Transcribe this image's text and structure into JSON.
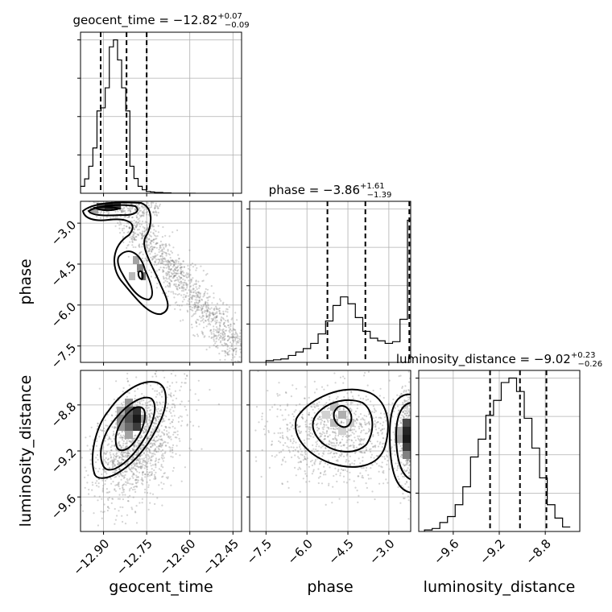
{
  "chart_data": {
    "type": "corner",
    "parameters": [
      {
        "name": "geocent_time",
        "title_prefix": "geocent_time = ",
        "median": "−12.82",
        "upper": "+0.07",
        "lower": "−0.09",
        "range": [
          -12.98,
          -12.42
        ],
        "ticks": [
          -12.9,
          -12.75,
          -12.6,
          -12.45
        ],
        "tick_labels": [
          "−12.90",
          "−12.75",
          "−12.60",
          "−12.45"
        ],
        "quantiles": [
          -12.91,
          -12.82,
          -12.75
        ],
        "hist": {
          "edges_start": -12.98,
          "bin_width": 0.0143,
          "counts": [
            0.16,
            0.33,
            0.62,
            1.04,
            1.89,
            1.96,
            2.42,
            3.36,
            3.52,
            3.06,
            2.42,
            1.89,
            0.62,
            0.34,
            0.16,
            0.08,
            0.04,
            0.03,
            0.02,
            0.02,
            0.01,
            0.01,
            0,
            0,
            0,
            0,
            0,
            0
          ]
        }
      },
      {
        "name": "phase",
        "title_prefix": "phase = ",
        "median": "−3.86",
        "upper": "+1.61",
        "lower": "−1.39",
        "range": [
          -8.1,
          -2.2
        ],
        "ticks": [
          -7.5,
          -6.0,
          -4.5,
          -3.0
        ],
        "tick_labels": [
          "−7.5",
          "−6.0",
          "−4.5",
          "−3.0"
        ],
        "quantiles": [
          -5.25,
          -3.86,
          -2.25
        ],
        "hist": {
          "edges_start": -7.5,
          "bin_width": 0.2727,
          "counts": [
            0.02,
            0.03,
            0.04,
            0.08,
            0.12,
            0.16,
            0.22,
            0.33,
            0.48,
            0.66,
            0.76,
            0.68,
            0.52,
            0.36,
            0.28,
            0.25,
            0.22,
            0.24,
            0.5,
            1.65,
            1.78
          ]
        }
      },
      {
        "name": "luminosity_distance",
        "title_prefix": "luminosity_distance = ",
        "median": "−9.02",
        "upper": "+0.23",
        "lower": "−0.26",
        "range": [
          -9.9,
          -8.5
        ],
        "ticks": [
          -9.6,
          -9.2,
          -8.8
        ],
        "tick_labels": [
          "−9.6",
          "−9.2",
          "−8.8"
        ],
        "quantiles": [
          -9.28,
          -9.02,
          -8.79
        ],
        "hist": {
          "edges_start": -9.85,
          "bin_width": 0.0667,
          "counts": [
            0.01,
            0.02,
            0.06,
            0.1,
            0.18,
            0.3,
            0.5,
            0.62,
            0.78,
            0.88,
            1.0,
            1.03,
            0.94,
            0.76,
            0.56,
            0.36,
            0.18,
            0.09,
            0.03
          ]
        }
      }
    ],
    "pairs": [
      {
        "x": "geocent_time",
        "y": "phase",
        "y_ticks": [
          -3.0,
          -4.5,
          -6.0,
          -7.5
        ],
        "y_tick_labels": [
          "−3.0",
          "−4.5",
          "−6.0",
          "−7.5"
        ]
      },
      {
        "x": "geocent_time",
        "y": "luminosity_distance",
        "y_ticks": [
          -8.8,
          -9.2,
          -9.6
        ],
        "y_tick_labels": [
          "−8.8",
          "−9.2",
          "−9.6"
        ]
      },
      {
        "x": "phase",
        "y": "luminosity_distance",
        "y_ticks": [],
        "y_tick_labels": []
      }
    ],
    "axis_labels": {
      "phase_y": "phase",
      "luminosity_distance_y": "luminosity_distance",
      "geocent_time_x": "geocent_time",
      "phase_x": "phase",
      "luminosity_distance_x": "luminosity_distance"
    },
    "grid": true
  }
}
